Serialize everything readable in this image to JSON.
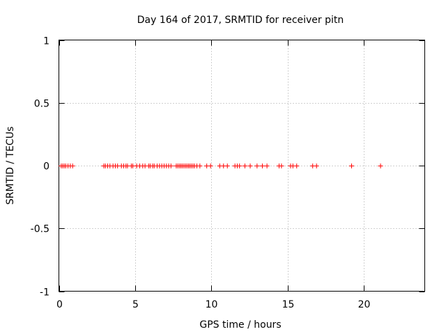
{
  "chart_data": {
    "type": "scatter",
    "title": "Day 164 of 2017, SRMTID for receiver pitn",
    "xlabel": "GPS time / hours",
    "ylabel": "SRMTID / TECUs",
    "xlim": [
      0,
      24
    ],
    "ylim": [
      -1,
      1
    ],
    "xticks": [
      0,
      5,
      10,
      15,
      20
    ],
    "yticks": [
      {
        "value": 1,
        "label": "1"
      },
      {
        "value": 0.5,
        "label": "0.5"
      },
      {
        "value": 0,
        "label": "0"
      },
      {
        "value": -0.5,
        "label": "-0.5"
      },
      {
        "value": -1,
        "label": "-1"
      }
    ],
    "grid": true,
    "marker": "+",
    "marker_color": "#ff0000",
    "series": [
      {
        "name": "SRMTID",
        "x": [
          0.15,
          0.25,
          0.35,
          0.45,
          0.6,
          0.75,
          0.9,
          2.95,
          3.05,
          3.2,
          3.35,
          3.55,
          3.7,
          3.85,
          4.1,
          4.25,
          4.4,
          4.5,
          4.75,
          4.85,
          5.1,
          5.3,
          5.5,
          5.65,
          5.9,
          6.0,
          6.15,
          6.25,
          6.45,
          6.6,
          6.75,
          6.9,
          7.05,
          7.2,
          7.35,
          7.7,
          7.8,
          7.9,
          8.0,
          8.1,
          8.2,
          8.3,
          8.4,
          8.5,
          8.6,
          8.7,
          8.8,
          8.9,
          9.05,
          9.25,
          9.7,
          9.95,
          10.55,
          10.8,
          11.05,
          11.55,
          11.7,
          11.85,
          12.2,
          12.55,
          13.0,
          13.35,
          13.65,
          14.45,
          14.6,
          15.2,
          15.35,
          15.6,
          16.65,
          16.9,
          19.2,
          21.1
        ],
        "y": [
          0,
          0,
          0,
          0,
          0,
          0,
          0,
          0,
          0,
          0,
          0,
          0,
          0,
          0,
          0,
          0,
          0,
          0,
          0,
          0,
          0,
          0,
          0,
          0,
          0,
          0,
          0,
          0,
          0,
          0,
          0,
          0,
          0,
          0,
          0,
          0,
          0,
          0,
          0,
          0,
          0,
          0,
          0,
          0,
          0,
          0,
          0,
          0,
          0,
          0,
          0,
          0,
          0,
          0,
          0,
          0,
          0,
          0,
          0,
          0,
          0,
          0,
          0,
          0,
          0,
          0,
          0,
          0,
          0,
          0,
          0,
          0
        ]
      }
    ]
  }
}
